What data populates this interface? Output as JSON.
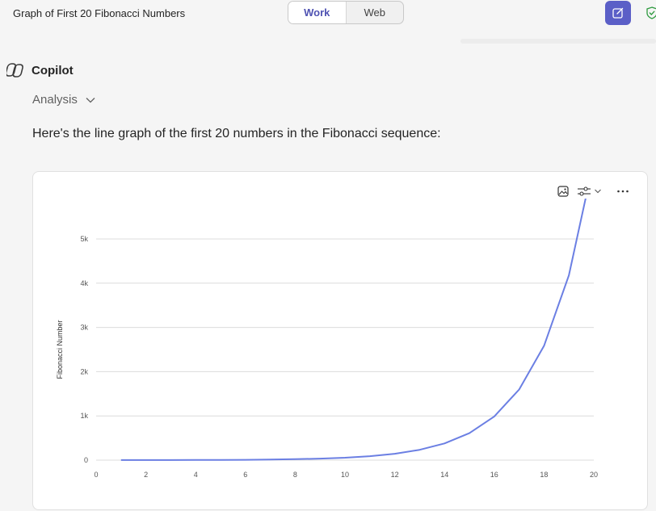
{
  "header": {
    "title": "Graph of First 20 Fibonacci Numbers",
    "mode_toggle": [
      {
        "label": "Work",
        "active": true
      },
      {
        "label": "Web",
        "active": false
      }
    ],
    "new_chat_icon": "compose-icon",
    "status_icon": "shield-check-icon"
  },
  "assistant": {
    "name": "Copilot",
    "analysis_label": "Analysis",
    "message": "Here's the line graph of the first 20 numbers in the Fibonacci sequence:"
  },
  "card": {
    "tools": [
      "image-icon",
      "settings-sliders-icon",
      "more-icon"
    ]
  },
  "colors": {
    "accent": "#5b5fc7",
    "line": "#6b7fe3",
    "grid": "#dcdcdc",
    "shield": "#2e9a3f"
  },
  "chart_data": {
    "type": "line",
    "title": "",
    "xlabel": "",
    "ylabel": "Fibonacci Number",
    "xlim": [
      0,
      20
    ],
    "ylim": [
      0,
      5000
    ],
    "xticks": [
      0,
      2,
      4,
      6,
      8,
      10,
      12,
      14,
      16,
      18,
      20
    ],
    "yticks": [
      0,
      1000,
      2000,
      3000,
      4000,
      5000
    ],
    "ytick_labels": [
      "0",
      "1k",
      "2k",
      "3k",
      "4k",
      "5k"
    ],
    "grid": true,
    "x": [
      1,
      2,
      3,
      4,
      5,
      6,
      7,
      8,
      9,
      10,
      11,
      12,
      13,
      14,
      15,
      16,
      17,
      18,
      19,
      20
    ],
    "series": [
      {
        "values": [
          1,
          1,
          2,
          3,
          5,
          8,
          13,
          21,
          34,
          55,
          89,
          144,
          233,
          377,
          610,
          987,
          1597,
          2584,
          4181,
          6765
        ]
      }
    ]
  }
}
